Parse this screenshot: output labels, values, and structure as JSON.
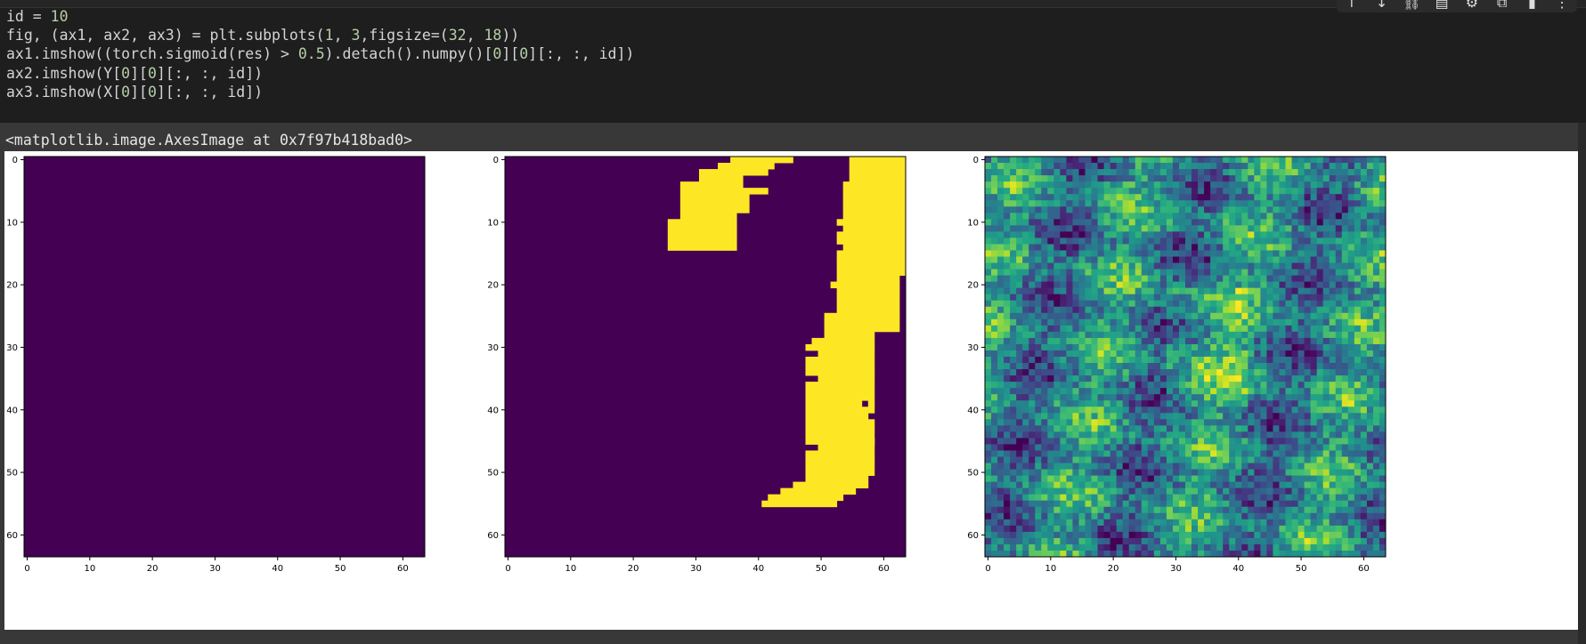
{
  "cell": {
    "code_lines": [
      [
        {
          "t": "id = "
        },
        {
          "t": "10",
          "c": "num"
        }
      ],
      [
        {
          "t": "fig, (ax1, ax2, ax3) = plt.subplots("
        },
        {
          "t": "1",
          "c": "num"
        },
        {
          "t": ", "
        },
        {
          "t": "3",
          "c": "num"
        },
        {
          "t": ",figsize=("
        },
        {
          "t": "32",
          "c": "num"
        },
        {
          "t": ", "
        },
        {
          "t": "18",
          "c": "num"
        },
        {
          "t": "))"
        }
      ],
      [
        {
          "t": "ax1.imshow((torch.sigmoid(res) > "
        },
        {
          "t": "0.5",
          "c": "num"
        },
        {
          "t": ").detach().numpy()["
        },
        {
          "t": "0",
          "c": "num"
        },
        {
          "t": "]["
        },
        {
          "t": "0",
          "c": "num"
        },
        {
          "t": "][:, :, id])"
        }
      ],
      [
        {
          "t": "ax2.imshow(Y["
        },
        {
          "t": "0",
          "c": "num"
        },
        {
          "t": "]["
        },
        {
          "t": "0",
          "c": "num"
        },
        {
          "t": "][:, :, id])"
        }
      ],
      [
        {
          "t": "ax3.imshow(X["
        },
        {
          "t": "0",
          "c": "num"
        },
        {
          "t": "]["
        },
        {
          "t": "0",
          "c": "num"
        },
        {
          "t": "][:, :, id])"
        }
      ]
    ],
    "toolbar_icons": [
      "move-up-icon",
      "move-down-icon",
      "link-icon",
      "comment-icon",
      "settings-icon",
      "mirror-cell-icon",
      "delete-icon",
      "more-icon"
    ],
    "toolbar_glyphs": [
      "↑",
      "↓",
      "⛓",
      "▤",
      "⚙",
      "⧉",
      "▮",
      "⋮"
    ]
  },
  "output": {
    "text": "<matplotlib.image.AxesImage at 0x7f97b418bad0>"
  },
  "colors": {
    "viridis_low": "#440154",
    "viridis_high": "#fde725",
    "code_number": "#b5cea8"
  },
  "chart_data": [
    {
      "type": "heatmap",
      "title": "",
      "grid_size": [
        64,
        64
      ],
      "xlabel": "",
      "ylabel": "",
      "x_ticks": [
        "0",
        "10",
        "20",
        "30",
        "40",
        "50",
        "60"
      ],
      "y_ticks": [
        "0",
        "10",
        "20",
        "30",
        "40",
        "50",
        "60"
      ],
      "xlim": [
        -0.5,
        63.5
      ],
      "ylim": [
        63.5,
        -0.5
      ],
      "colormap": "viridis",
      "fill": "all zero (uniform #440154)"
    },
    {
      "type": "heatmap",
      "title": "",
      "grid_size": [
        64,
        64
      ],
      "x_ticks": [
        "0",
        "10",
        "20",
        "30",
        "40",
        "50",
        "60"
      ],
      "y_ticks": [
        "0",
        "10",
        "20",
        "30",
        "40",
        "50",
        "60"
      ],
      "xlim": [
        -0.5,
        63.5
      ],
      "ylim": [
        63.5,
        -0.5
      ],
      "colormap": "viridis",
      "binary_runs": [
        [
          0,
          36,
          45
        ],
        [
          0,
          55,
          63
        ],
        [
          1,
          34,
          42
        ],
        [
          1,
          55,
          63
        ],
        [
          2,
          31,
          41
        ],
        [
          2,
          55,
          63
        ],
        [
          3,
          31,
          37
        ],
        [
          3,
          55,
          63
        ],
        [
          4,
          28,
          37
        ],
        [
          4,
          54,
          63
        ],
        [
          5,
          28,
          41
        ],
        [
          5,
          54,
          63
        ],
        [
          6,
          28,
          38
        ],
        [
          6,
          54,
          63
        ],
        [
          7,
          28,
          38
        ],
        [
          7,
          54,
          63
        ],
        [
          8,
          28,
          38
        ],
        [
          8,
          54,
          63
        ],
        [
          9,
          28,
          36
        ],
        [
          9,
          54,
          63
        ],
        [
          10,
          26,
          36
        ],
        [
          10,
          53,
          63
        ],
        [
          11,
          26,
          36
        ],
        [
          11,
          54,
          63
        ],
        [
          12,
          26,
          36
        ],
        [
          12,
          53,
          63
        ],
        [
          13,
          26,
          36
        ],
        [
          13,
          53,
          63
        ],
        [
          14,
          26,
          36
        ],
        [
          14,
          54,
          63
        ],
        [
          15,
          53,
          63
        ],
        [
          16,
          53,
          63
        ],
        [
          17,
          53,
          63
        ],
        [
          18,
          53,
          63
        ],
        [
          19,
          53,
          62
        ],
        [
          20,
          52,
          62
        ],
        [
          21,
          53,
          62
        ],
        [
          22,
          53,
          62
        ],
        [
          23,
          53,
          62
        ],
        [
          24,
          53,
          62
        ],
        [
          25,
          51,
          62
        ],
        [
          26,
          51,
          59
        ],
        [
          26,
          60,
          62
        ],
        [
          27,
          51,
          59
        ],
        [
          27,
          60,
          62
        ],
        [
          28,
          51,
          58
        ],
        [
          29,
          49,
          58
        ],
        [
          30,
          48,
          58
        ],
        [
          31,
          50,
          58
        ],
        [
          32,
          48,
          58
        ],
        [
          33,
          48,
          58
        ],
        [
          34,
          48,
          58
        ],
        [
          35,
          50,
          58
        ],
        [
          36,
          48,
          58
        ],
        [
          37,
          48,
          58
        ],
        [
          38,
          48,
          58
        ],
        [
          39,
          48,
          56
        ],
        [
          39,
          58,
          58
        ],
        [
          40,
          48,
          58
        ],
        [
          41,
          48,
          57
        ],
        [
          42,
          48,
          58
        ],
        [
          43,
          48,
          58
        ],
        [
          44,
          48,
          58
        ],
        [
          45,
          48,
          58
        ],
        [
          45,
          48,
          58
        ],
        [
          46,
          50,
          58
        ],
        [
          47,
          48,
          58
        ],
        [
          48,
          48,
          58
        ],
        [
          49,
          48,
          58
        ],
        [
          50,
          48,
          58
        ],
        [
          51,
          48,
          57
        ],
        [
          52,
          46,
          57
        ],
        [
          53,
          44,
          55
        ],
        [
          54,
          42,
          53
        ],
        [
          55,
          41,
          52
        ]
      ]
    },
    {
      "type": "heatmap",
      "title": "",
      "grid_size": [
        64,
        64
      ],
      "x_ticks": [
        "0",
        "10",
        "20",
        "30",
        "40",
        "50",
        "60"
      ],
      "y_ticks": [
        "0",
        "10",
        "20",
        "30",
        "40",
        "50",
        "60"
      ],
      "xlim": [
        -0.5,
        63.5
      ],
      "ylim": [
        63.5,
        -0.5
      ],
      "colormap": "viridis",
      "fill": "continuous noise texture"
    }
  ]
}
